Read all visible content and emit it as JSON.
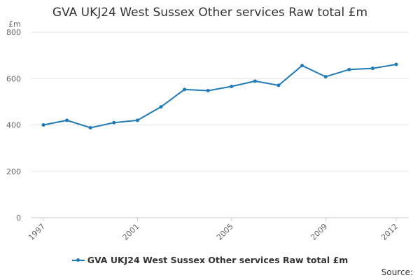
{
  "chart_data": {
    "type": "line",
    "title": "GVA UKJ24 West Sussex Other services Raw total £m",
    "ylabel": "£m",
    "xlabel": "",
    "ylim": [
      0,
      800
    ],
    "yticks": [
      0,
      200,
      400,
      600,
      800
    ],
    "xlim": [
      1997,
      2012
    ],
    "xticks": [
      1997,
      2001,
      2005,
      2009,
      2012
    ],
    "grid": true,
    "legend_placement": "bottom",
    "series": [
      {
        "name": "GVA UKJ24 West Sussex Other services Raw total £m",
        "color": "#1f7ab8",
        "x": [
          1997,
          1998,
          1999,
          2000,
          2001,
          2002,
          2003,
          2004,
          2005,
          2006,
          2007,
          2008,
          2009,
          2010,
          2011,
          2012
        ],
        "values": [
          400,
          420,
          388,
          410,
          420,
          478,
          553,
          548,
          566,
          589,
          571,
          656,
          608,
          639,
          644,
          661
        ]
      }
    ]
  },
  "source_label": "Source:"
}
